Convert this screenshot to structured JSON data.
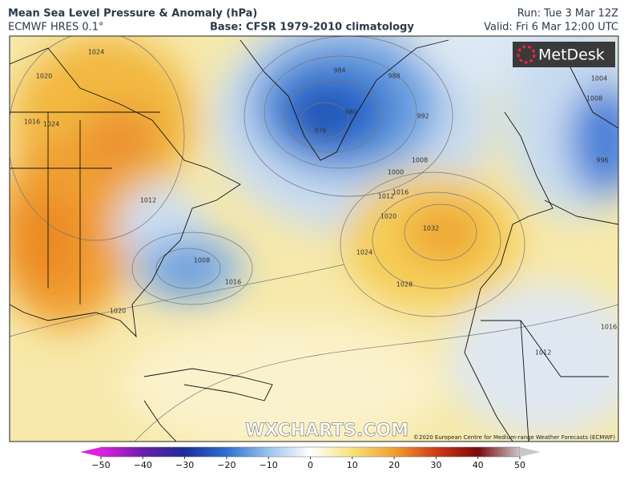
{
  "header": {
    "title": "Mean Sea Level Pressure & Anomaly (hPa)",
    "model": "ECMWF HRES 0.1°",
    "base": "Base: CFSR 1979-2010 climatology",
    "run": "Run: Tue 3 Mar 12Z",
    "valid": "Valid: Fri 6 Mar 12:00 UTC"
  },
  "logo": "MetDesk",
  "watermark": "WXCHARTS.COM",
  "copyright": "©2020 European Centre for Medium-range Weather Forecasts (ECMWF)",
  "isobar_labels": [
    "1024",
    "1020",
    "1016",
    "1024",
    "984",
    "988",
    "980",
    "976",
    "992",
    "1008",
    "1000",
    "1012",
    "1016",
    "1020",
    "1024",
    "1032",
    "1028",
    "1008",
    "1016",
    "1020",
    "1012",
    "1012",
    "1004",
    "1008",
    "996",
    "1016"
  ],
  "colorbar": {
    "ticks": [
      {
        "value": -50,
        "label": "−50"
      },
      {
        "value": -40,
        "label": "−40"
      },
      {
        "value": -30,
        "label": "−30"
      },
      {
        "value": -20,
        "label": "−20"
      },
      {
        "value": -10,
        "label": "−10"
      },
      0,
      10,
      20,
      30,
      40,
      50
    ]
  }
}
